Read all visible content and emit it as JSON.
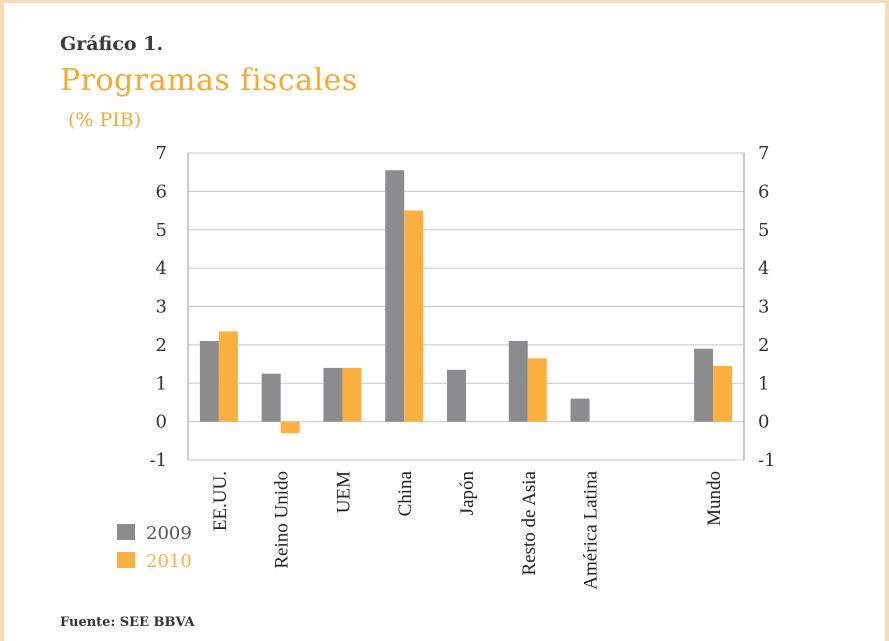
{
  "header": {
    "label": "Gráfico 1.",
    "title": "Programas fiscales",
    "subtitle": "(% PIB)"
  },
  "source": "Fuente: SEE BBVA",
  "colors": {
    "series_2009": "#8c8c8e",
    "series_2010": "#fbb040",
    "title": "#f7a934",
    "grid": "#c8c8c8"
  },
  "chart_data": {
    "type": "bar",
    "categories": [
      "EE.UU.",
      "Reino Unido",
      "UEM",
      "China",
      "Japón",
      "Resto de Asia",
      "América Latina",
      "",
      "Mundo"
    ],
    "series": [
      {
        "name": "2009",
        "values": [
          2.1,
          1.25,
          1.4,
          6.55,
          1.35,
          2.1,
          0.6,
          null,
          1.9
        ]
      },
      {
        "name": "2010",
        "values": [
          2.35,
          -0.3,
          1.4,
          5.5,
          null,
          1.65,
          null,
          null,
          1.45
        ]
      }
    ],
    "ylim": [
      -1,
      7
    ],
    "yticks": [
      -1,
      0,
      1,
      2,
      3,
      4,
      5,
      6,
      7
    ],
    "grid": true,
    "dual_y_axis": true,
    "legend_position": "bottom-left"
  }
}
